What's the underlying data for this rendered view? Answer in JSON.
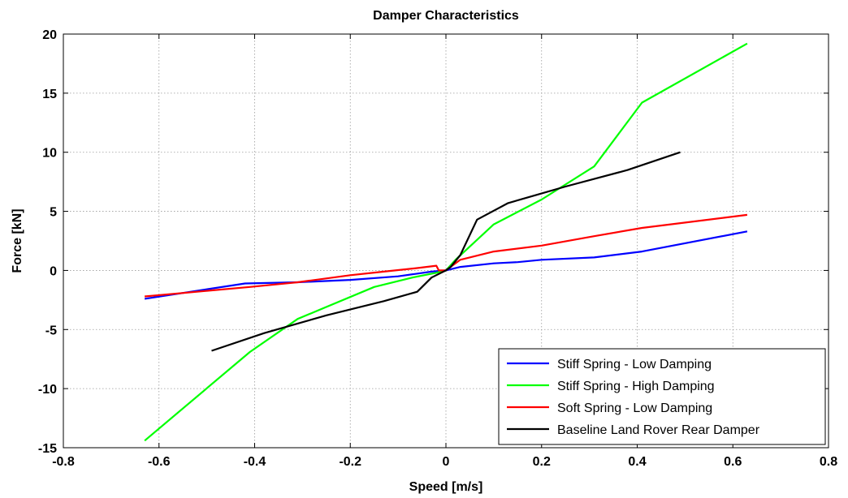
{
  "chart_data": {
    "type": "line",
    "title": "Damper Characteristics",
    "xlabel": "Speed [m/s]",
    "ylabel": "Force [kN]",
    "xlim": [
      -0.8,
      0.8
    ],
    "ylim": [
      -15,
      20
    ],
    "xticks": [
      -0.8,
      -0.6,
      -0.4,
      -0.2,
      0,
      0.2,
      0.4,
      0.6,
      0.8
    ],
    "yticks": [
      -15,
      -10,
      -5,
      0,
      5,
      10,
      15,
      20
    ],
    "xtick_labels": [
      "-0.8",
      "-0.6",
      "-0.4",
      "-0.2",
      "0",
      "0.2",
      "0.4",
      "0.6",
      "0.8"
    ],
    "ytick_labels": [
      "-15",
      "-10",
      "-5",
      "0",
      "5",
      "10",
      "15",
      "20"
    ],
    "grid": true,
    "legend_position": "bottom-right",
    "series": [
      {
        "name": "Stiff Spring - Low Damping",
        "color": "#0000ff",
        "x": [
          -0.63,
          -0.42,
          -0.31,
          -0.2,
          -0.1,
          -0.03,
          0,
          0.03,
          0.1,
          0.15,
          0.2,
          0.31,
          0.41,
          0.63
        ],
        "y": [
          -2.4,
          -1.1,
          -1.0,
          -0.8,
          -0.5,
          -0.1,
          0,
          0.3,
          0.6,
          0.7,
          0.9,
          1.1,
          1.6,
          3.3
        ]
      },
      {
        "name": "Stiff Spring - High Damping",
        "color": "#00ff00",
        "x": [
          -0.63,
          -0.41,
          -0.31,
          -0.15,
          -0.07,
          -0.02,
          0,
          0.02,
          0.1,
          0.2,
          0.31,
          0.41,
          0.63
        ],
        "y": [
          -14.4,
          -6.9,
          -4.1,
          -1.4,
          -0.6,
          -0.2,
          0,
          0.9,
          3.9,
          6.0,
          8.8,
          14.2,
          19.2
        ]
      },
      {
        "name": "Soft Spring - Low Damping",
        "color": "#ff0000",
        "x": [
          -0.63,
          -0.41,
          -0.31,
          -0.2,
          -0.13,
          -0.06,
          -0.02,
          -0.015,
          0,
          0.03,
          0.1,
          0.2,
          0.31,
          0.41,
          0.63
        ],
        "y": [
          -2.2,
          -1.4,
          -1.0,
          -0.4,
          -0.1,
          0.2,
          0.4,
          0.0,
          0,
          0.9,
          1.6,
          2.1,
          2.9,
          3.6,
          4.7
        ]
      },
      {
        "name": "Baseline Land Rover Rear Damper",
        "color": "#000000",
        "x": [
          -0.49,
          -0.38,
          -0.25,
          -0.19,
          -0.13,
          -0.06,
          -0.03,
          -0.01,
          0,
          0.01,
          0.03,
          0.065,
          0.13,
          0.19,
          0.25,
          0.38,
          0.49
        ],
        "y": [
          -6.8,
          -5.3,
          -3.8,
          -3.2,
          -2.6,
          -1.8,
          -0.6,
          -0.2,
          0,
          0.3,
          1.3,
          4.3,
          5.7,
          6.4,
          7.1,
          8.5,
          10.0
        ]
      }
    ]
  }
}
